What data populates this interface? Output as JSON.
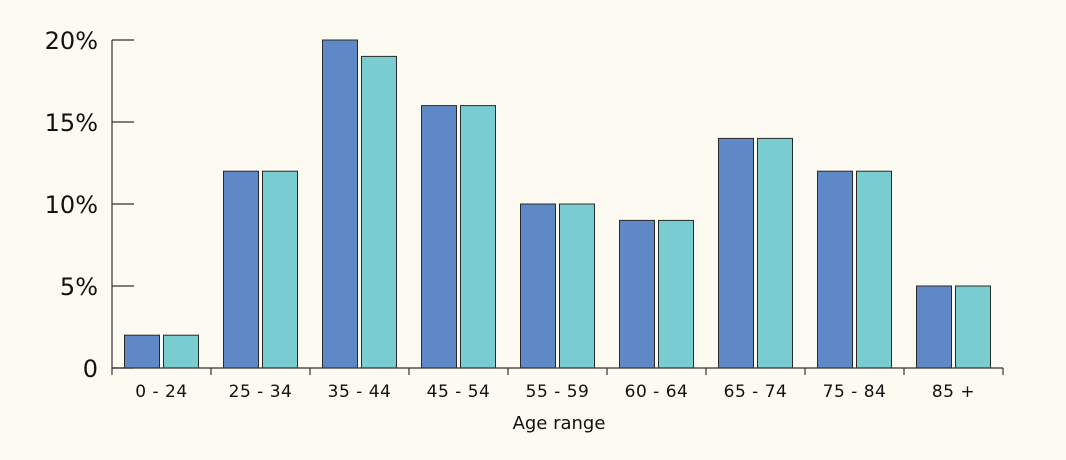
{
  "colors": {
    "background": "#fdfaf1",
    "series_1": "#5f88c6",
    "series_2": "#79cdd0"
  },
  "chart_data": {
    "type": "bar",
    "title": "",
    "xlabel": "Age range",
    "ylabel": "",
    "ylim": [
      0,
      20
    ],
    "y_ticks": [
      0,
      5,
      10,
      15,
      20
    ],
    "y_tick_labels": [
      "0",
      "5%",
      "10%",
      "15%",
      "20%"
    ],
    "categories": [
      "0 - 24",
      "25 - 34",
      "35 - 44",
      "45 - 54",
      "55 - 59",
      "60 - 64",
      "65 - 74",
      "75 - 84",
      "85 +"
    ],
    "series": [
      {
        "values": [
          2,
          12,
          20,
          16,
          10,
          9,
          14,
          12,
          5
        ]
      },
      {
        "values": [
          2,
          12,
          19,
          16,
          10,
          9,
          14,
          12,
          5
        ]
      }
    ],
    "grid": false,
    "legend": "none"
  }
}
